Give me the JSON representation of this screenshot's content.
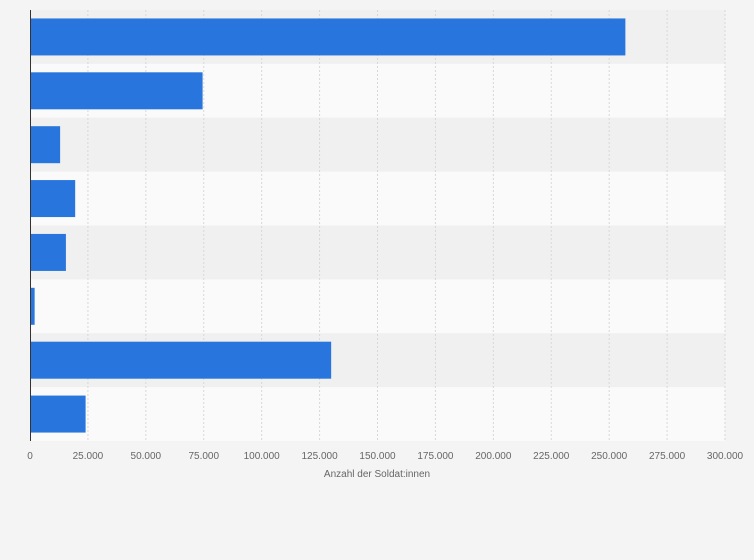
{
  "chart_data": {
    "type": "bar",
    "orientation": "horizontal",
    "categories": [
      "",
      "",
      "",
      "",
      "",
      "",
      "",
      ""
    ],
    "values": [
      257000,
      74500,
      13000,
      19500,
      15500,
      2000,
      130000,
      24000
    ],
    "xlabel": "Anzahl der Soldat:innen",
    "ylabel": "",
    "xlim": [
      0,
      300000
    ],
    "xticks": [
      0,
      25000,
      50000,
      75000,
      100000,
      125000,
      150000,
      175000,
      200000,
      225000,
      250000,
      275000,
      300000
    ],
    "xtick_labels": [
      "0",
      "25.000",
      "50.000",
      "75.000",
      "100.000",
      "125.000",
      "150.000",
      "175.000",
      "200.000",
      "225.000",
      "250.000",
      "275.000",
      "300.000"
    ],
    "grid": true,
    "legend": "none",
    "colors": {
      "bar": "#2876dd",
      "band_dark": "#f0f0f0",
      "band_light": "#fafafa",
      "grid": "#d7d7d7",
      "axis": "#333333",
      "text": "#666666",
      "background": "#f4f4f4"
    }
  }
}
